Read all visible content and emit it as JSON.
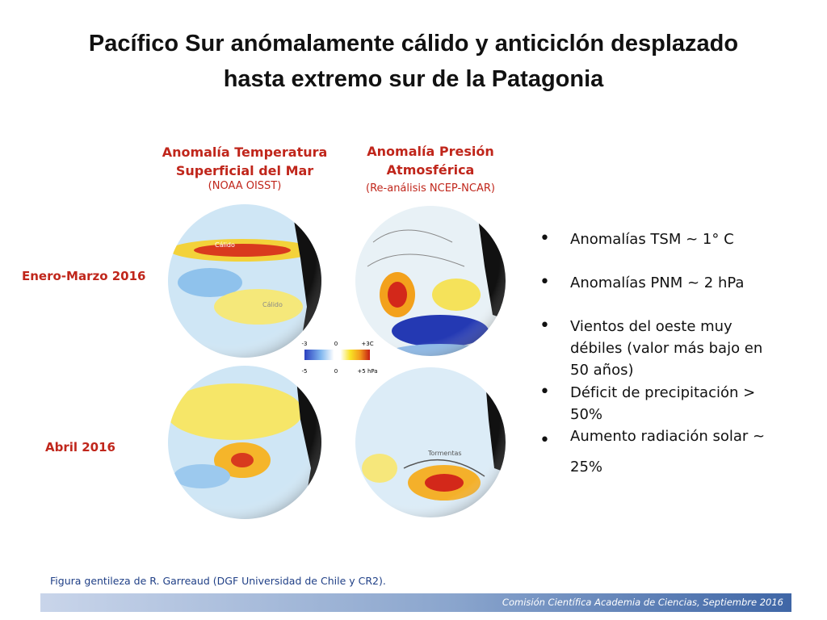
{
  "title": [
    "Pacífico Sur anómalamente cálido y anticiclón desplazado",
    "hasta extremo sur de la Patagonia"
  ],
  "panels": {
    "sst": {
      "title": [
        "Anomalía Temperatura",
        "Superficial del Mar"
      ],
      "source": "(NOAA OISST)"
    },
    "slp": {
      "title": [
        "Anomalía Presión",
        "Atmosférica"
      ],
      "source": "(Re-análisis NCEP-NCAR)"
    }
  },
  "rows": [
    "Enero-Marzo 2016",
    "Abril 2016"
  ],
  "map_labels": [
    "Cálido",
    "Cálido",
    "Tormentas"
  ],
  "colorbar": {
    "sst": [
      "-3",
      "0",
      "+3C"
    ],
    "slp": [
      "-5",
      "0",
      "+5 hPa"
    ]
  },
  "bullets": [
    "Anomalías TSM ~ 1° C",
    "Anomalías PNM ~ 2 hPa",
    "Vientos del oeste muy débiles (valor más bajo en 50 años)",
    "Déficit de precipitación > 50%",
    "Aumento radiación solar ~ 25%"
  ],
  "credit": "Figura gentileza de R. Garreaud (DGF Universidad de Chile y CR2).",
  "footer": "Comisión Científica Academia de Ciencias, Septiembre 2016"
}
